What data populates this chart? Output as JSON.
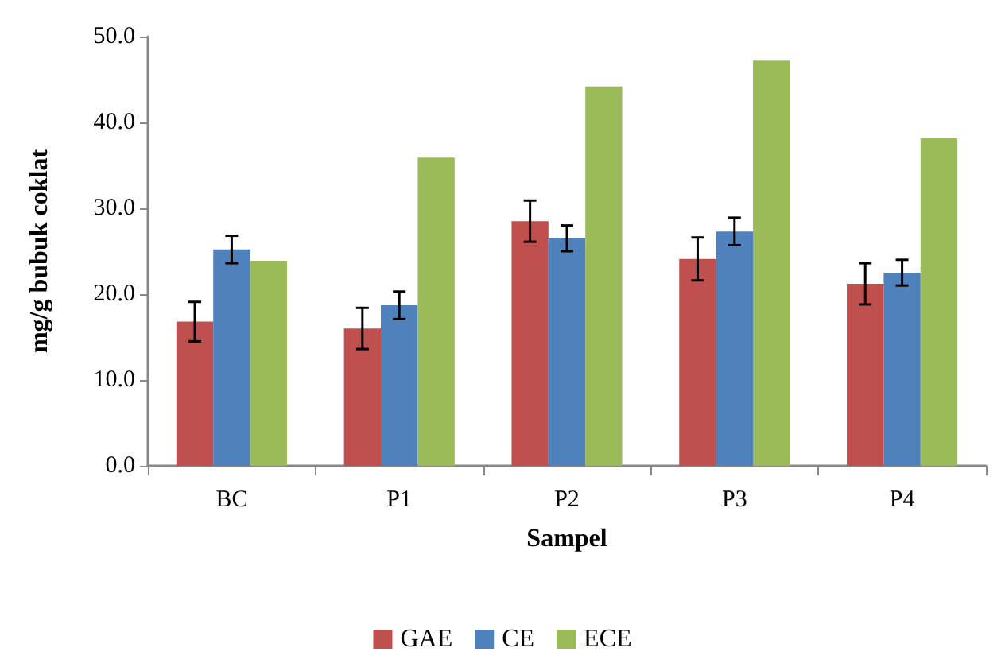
{
  "chart_data": {
    "type": "bar",
    "xlabel": "Sampel",
    "ylabel": "mg/g bubuk coklat",
    "categories": [
      "BC",
      "P1",
      "P2",
      "P3",
      "P4"
    ],
    "series": [
      {
        "name": "GAE",
        "color": "#c0504d",
        "values": [
          16.8,
          16.0,
          28.5,
          24.1,
          21.2
        ],
        "errors": [
          2.3,
          2.4,
          2.4,
          2.5,
          2.4
        ]
      },
      {
        "name": "CE",
        "color": "#4f81bd",
        "values": [
          25.2,
          18.7,
          26.5,
          27.3,
          22.5
        ],
        "errors": [
          1.6,
          1.6,
          1.5,
          1.6,
          1.5
        ]
      },
      {
        "name": "ECE",
        "color": "#9bbb59",
        "values": [
          23.9,
          35.9,
          44.2,
          47.2,
          38.2
        ]
      }
    ],
    "ylim": [
      0,
      50
    ],
    "yticks": [
      {
        "value": 0,
        "label": "0.0"
      },
      {
        "value": 10,
        "label": "10.0"
      },
      {
        "value": 20,
        "label": "20.0"
      },
      {
        "value": 30,
        "label": "30.0"
      },
      {
        "value": 40,
        "label": "40.0"
      },
      {
        "value": 50,
        "label": "50.0"
      }
    ],
    "grid": false,
    "legend": "bottom"
  }
}
